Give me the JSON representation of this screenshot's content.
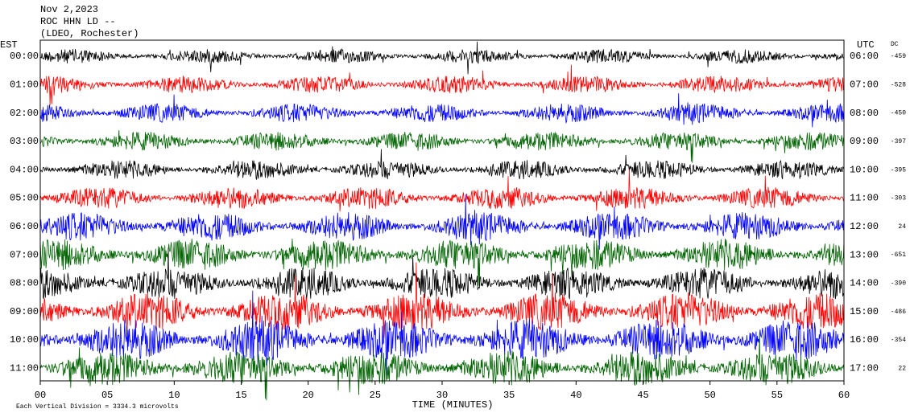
{
  "chart_data": {
    "type": "helicorder",
    "header": [
      "Nov 2,2023",
      "ROC HHN LD --",
      "(LDEO, Rochester)"
    ],
    "left_label": "EST",
    "right_label": "UTC",
    "dc_label": "DC",
    "rows_est": [
      "00:00",
      "01:00",
      "02:00",
      "03:00",
      "04:00",
      "05:00",
      "06:00",
      "07:00",
      "08:00",
      "09:00",
      "10:00",
      "11:00"
    ],
    "rows_utc": [
      "06:00",
      "07:00",
      "08:00",
      "09:00",
      "10:00",
      "11:00",
      "12:00",
      "13:00",
      "14:00",
      "15:00",
      "16:00",
      "17:00"
    ],
    "dc": [
      -459,
      -528,
      -450,
      -397,
      -395,
      -303,
      24,
      -651,
      -390,
      -486,
      -354,
      22
    ],
    "colors": [
      "#000000",
      "#ff0000",
      "#0000ff",
      "#006400"
    ],
    "xlabel": "TIME (MINUTES)",
    "xlim": [
      0,
      60
    ],
    "xticks": [
      {
        "value": 0,
        "label": "00"
      },
      {
        "value": 5,
        "label": "05"
      },
      10,
      15,
      20,
      25,
      30,
      35,
      40,
      45,
      50,
      55,
      60
    ],
    "note": "Each Vertical Division = 3334.3 microvolts"
  }
}
